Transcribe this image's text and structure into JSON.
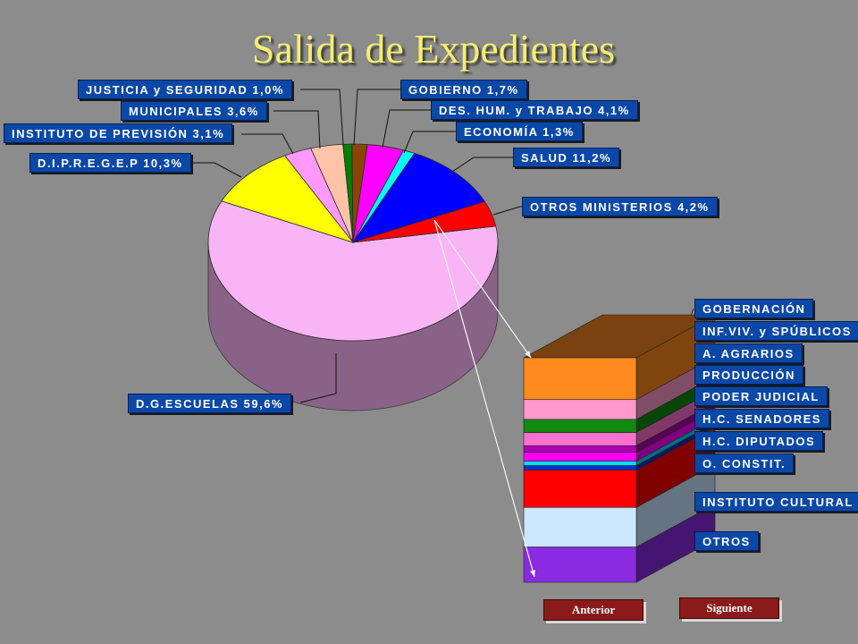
{
  "title": "Salida de Expedientes",
  "chart_data": [
    {
      "type": "pie",
      "slices": [
        {
          "label": "D.G.ESCUELAS",
          "value": 59.6,
          "text": "D.G.ESCUELAS 59,6%",
          "color": "#f9b4f6"
        },
        {
          "label": "D.I.P.R.E.G.E.P",
          "value": 10.3,
          "text": "D.I.P.R.E.G.E.P 10,3%",
          "color": "#ffff00"
        },
        {
          "label": "INSTITUTO DE PREVISIÓN",
          "value": 3.1,
          "text": "INSTITUTO DE PREVISIÓN 3,1%",
          "color": "#ff99ff"
        },
        {
          "label": "MUNICIPALES",
          "value": 3.6,
          "text": "MUNICIPALES 3,6%",
          "color": "#ffc4a8"
        },
        {
          "label": "JUSTICIA y SEGURIDAD",
          "value": 1.0,
          "text": "JUSTICIA y SEGURIDAD 1,0%",
          "color": "#008000"
        },
        {
          "label": "GOBIERNO",
          "value": 1.7,
          "text": "GOBIERNO 1,7%",
          "color": "#8a4500"
        },
        {
          "label": "DES. HUM. y TRABAJO",
          "value": 4.1,
          "text": "DES. HUM. y TRABAJO 4,1%",
          "color": "#ff00ff"
        },
        {
          "label": "ECONOMÍA",
          "value": 1.3,
          "text": "ECONOMÍA 1,3%",
          "color": "#00ffff"
        },
        {
          "label": "SALUD",
          "value": 11.2,
          "text": "SALUD 11,2%",
          "color": "#0000ff"
        },
        {
          "label": "OTROS MINISTERIOS",
          "value": 4.2,
          "text": "OTROS MINISTERIOS 4,2%",
          "color": "#ff0000"
        }
      ]
    },
    {
      "type": "bar",
      "stacked": true,
      "parent": "OTROS MINISTERIOS",
      "segments": [
        {
          "label": "GOBERNACIÓN",
          "value": 19,
          "color": "#ff8a1e"
        },
        {
          "label": "INF.VIV. y SPÚBLICOS",
          "value": 9,
          "color": "#ff99cc"
        },
        {
          "label": "A. AGRARIOS",
          "value": 6,
          "color": "#108a10"
        },
        {
          "label": "PRODUCCIÓN",
          "value": 6,
          "color": "#ff6fcf"
        },
        {
          "label": "PODER JUDICIAL",
          "value": 3,
          "color": "#b000b0"
        },
        {
          "label": "H.C. SENADORES",
          "value": 4,
          "color": "#ff00ff"
        },
        {
          "label": "H.C. DIPUTADOS",
          "value": 2,
          "color": "#00ddff"
        },
        {
          "label": "O. CONSTIT.",
          "value": 2,
          "color": "#0033cc"
        },
        {
          "label": "INSTITUTO CULTURAL",
          "value": 17,
          "color": "#ff0000"
        },
        {
          "label": "OTROS",
          "value": 18,
          "color": "#cce6ff"
        },
        {
          "label": "",
          "value": 16,
          "color": "#8a2be2"
        }
      ]
    }
  ],
  "nav": {
    "prev_label": "Anterior",
    "next_label": "Siguiente"
  }
}
